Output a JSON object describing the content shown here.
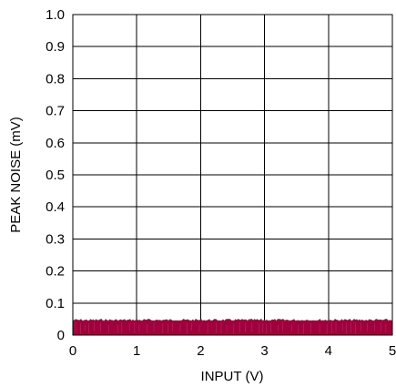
{
  "chart_data": {
    "type": "area",
    "title": "",
    "xlabel": "INPUT (V)",
    "ylabel": "PEAK NOISE (mV)",
    "xlim": [
      0,
      5
    ],
    "ylim": [
      0,
      1.0
    ],
    "x_ticks": [
      "0",
      "1",
      "2",
      "3",
      "4",
      "5"
    ],
    "y_ticks": [
      "0",
      "0.1",
      "0.2",
      "0.3",
      "0.4",
      "0.5",
      "0.6",
      "0.7",
      "0.8",
      "0.9",
      "1.0"
    ],
    "grid": true,
    "legend": "none",
    "series": [
      {
        "x": [
          0,
          5
        ],
        "y_min": [
          0,
          0
        ],
        "y_max": [
          0.05,
          0.05
        ],
        "y_typical": [
          0.045,
          0.045
        ],
        "color": "#a0003c"
      }
    ]
  }
}
